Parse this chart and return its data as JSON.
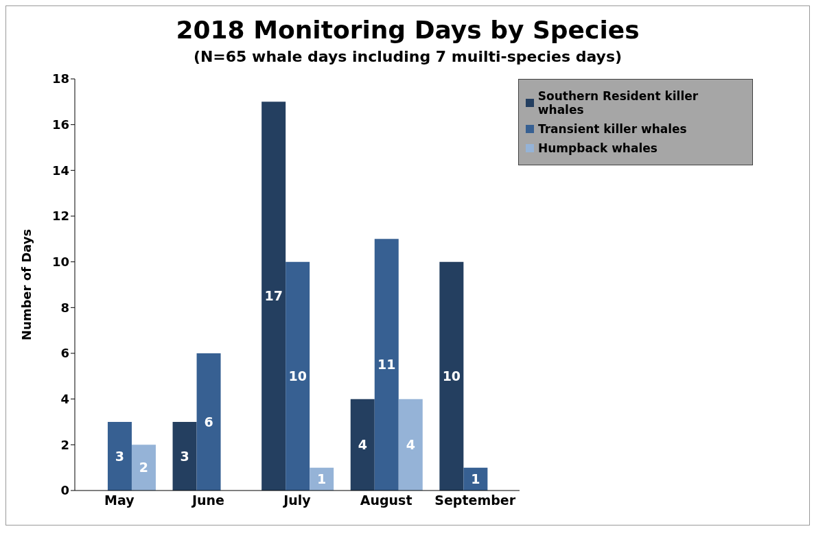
{
  "chart_data": {
    "type": "bar",
    "title": "2018 Monitoring Days by Species",
    "subtitle": "(N=65 whale days including 7 muilti-species days)",
    "ylabel": "Number of Days",
    "categories": [
      "May",
      "June",
      "July",
      "August",
      "September"
    ],
    "series": [
      {
        "name": "Southern Resident killer whales",
        "color": "#243f60",
        "values": [
          null,
          3,
          17,
          4,
          10
        ]
      },
      {
        "name": "Transient killer whales",
        "color": "#376092",
        "values": [
          3,
          6,
          10,
          11,
          1
        ]
      },
      {
        "name": "Humpback whales",
        "color": "#95b3d7",
        "values": [
          2,
          null,
          1,
          4,
          null
        ]
      }
    ],
    "ylim": [
      0,
      18
    ],
    "yticks": [
      0,
      2,
      4,
      6,
      8,
      10,
      12,
      14,
      16,
      18
    ],
    "grid": false,
    "legend": "top right",
    "data_labels": true
  }
}
